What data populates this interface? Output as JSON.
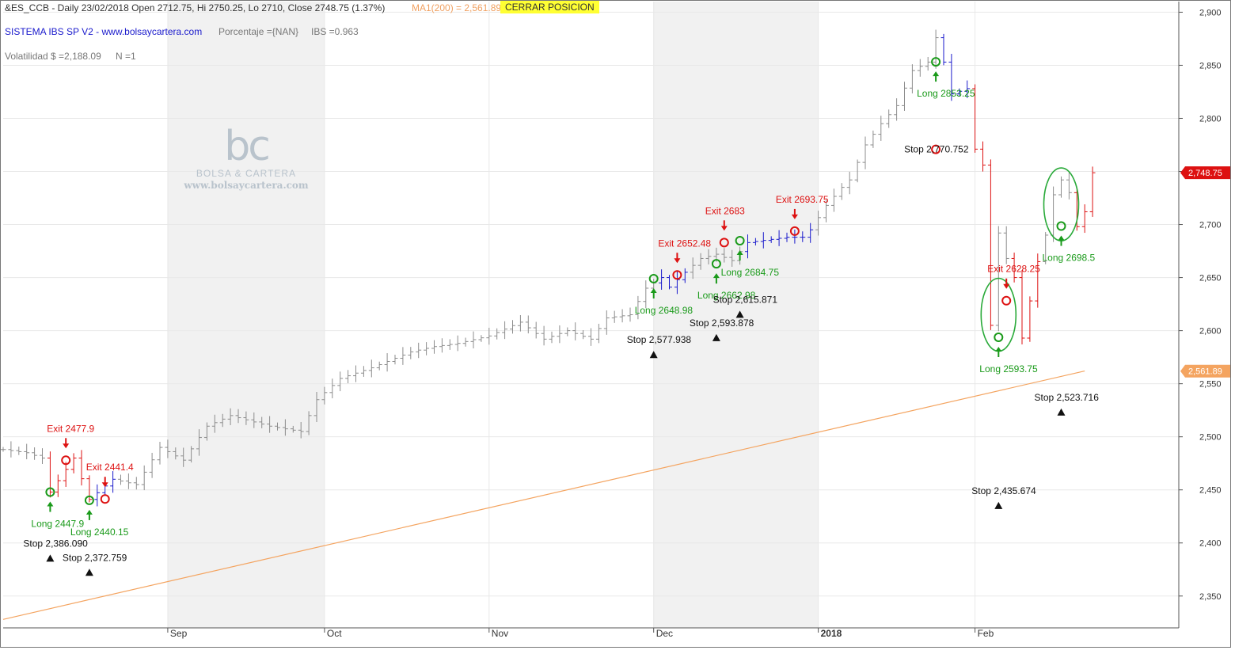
{
  "header": {
    "symbol_line": "&ES_CCB - Daily 23/02/2018  Open 2712.75,  Hi 2750.25,  Lo 2710,  Close 2748.75 (1.37%)",
    "ma_label": "MA1(200) = 2,561.89",
    "position_badge": "CERRAR POSICION",
    "system_name": "SISTEMA IBS SP V2  -  www.bolsaycartera.com",
    "porcentaje": "Porcentaje ={NAN}",
    "ibs": "IBS =0.963",
    "volatilidad": "Volatilidad $ =2,188.09",
    "n_count": "N =1"
  },
  "watermark": {
    "mark": "bc",
    "name": "BOLSA & CARTERA",
    "url": "www.bolsaycartera.com"
  },
  "colors": {
    "bar_gray": "#8c8c8c",
    "bar_red": "#dd1111",
    "bar_blue": "#1a1acc",
    "ma_line": "#f4a460",
    "long_green": "#1a9a1a",
    "exit_red": "#dd1111",
    "stop_black": "#111111",
    "shade": "#f1f1f1",
    "grid": "#e8e8e8"
  },
  "chart_data": {
    "type": "ohlc",
    "title": "&ES_CCB - Daily 23/02/2018",
    "y_axis": {
      "side": "right",
      "min": 2320,
      "max": 2910,
      "ticks": [
        2350,
        2400,
        2450,
        2500,
        2550,
        2600,
        2650,
        2700,
        2750,
        2800,
        2850,
        2900
      ],
      "tick_labels": [
        "2,350",
        "2,400",
        "2,450",
        "2,500",
        "2,550",
        "2,600",
        "2,650",
        "2,700",
        "2,750",
        "2,800",
        "2,850",
        "2,900"
      ]
    },
    "x_axis": {
      "index_range": [
        0,
        150
      ],
      "month_labels": [
        {
          "label": "Sep",
          "index": 21,
          "bold": false
        },
        {
          "label": "Oct",
          "index": 41,
          "bold": false
        },
        {
          "label": "Nov",
          "index": 62,
          "bold": false
        },
        {
          "label": "Dec",
          "index": 83,
          "bold": false
        },
        {
          "label": "2018",
          "index": 104,
          "bold": true
        },
        {
          "label": "Feb",
          "index": 124,
          "bold": false
        }
      ],
      "shaded_months": [
        [
          21,
          41
        ],
        [
          83,
          104
        ]
      ]
    },
    "price_labels": [
      {
        "text": "2,748.75",
        "value": 2748.75,
        "color": "#dd1111"
      },
      {
        "text": "2,561.89",
        "value": 2561.89,
        "color": "#f4a460"
      }
    ],
    "ma_line": {
      "name": "MA1(200)",
      "start": [
        0,
        2328
      ],
      "end": [
        138,
        2562
      ]
    },
    "price_path": [
      [
        0,
        2488
      ],
      [
        3,
        2485
      ],
      [
        5,
        2480
      ],
      [
        6,
        2448
      ],
      [
        9,
        2480
      ],
      [
        11,
        2441
      ],
      [
        14,
        2460
      ],
      [
        17,
        2455
      ],
      [
        20,
        2490
      ],
      [
        23,
        2478
      ],
      [
        26,
        2510
      ],
      [
        29,
        2520
      ],
      [
        34,
        2510
      ],
      [
        38,
        2505
      ],
      [
        40,
        2535
      ],
      [
        43,
        2555
      ],
      [
        47,
        2565
      ],
      [
        52,
        2580
      ],
      [
        55,
        2585
      ],
      [
        58,
        2588
      ],
      [
        62,
        2595
      ],
      [
        66,
        2608
      ],
      [
        69,
        2592
      ],
      [
        72,
        2600
      ],
      [
        75,
        2592
      ],
      [
        77,
        2612
      ],
      [
        80,
        2615
      ],
      [
        82,
        2640
      ],
      [
        84,
        2650
      ],
      [
        85,
        2641
      ],
      [
        87,
        2655
      ],
      [
        89,
        2668
      ],
      [
        91,
        2672
      ],
      [
        93,
        2666
      ],
      [
        95,
        2683
      ],
      [
        97,
        2685
      ],
      [
        100,
        2688
      ],
      [
        102,
        2688
      ],
      [
        103,
        2695
      ],
      [
        105,
        2718
      ],
      [
        107,
        2735
      ],
      [
        108,
        2742
      ],
      [
        110,
        2775
      ],
      [
        112,
        2795
      ],
      [
        114,
        2812
      ],
      [
        116,
        2845
      ],
      [
        118,
        2853
      ],
      [
        119,
        2876
      ],
      [
        120,
        2853
      ],
      [
        121,
        2823
      ],
      [
        123,
        2828
      ],
      [
        124,
        2771
      ],
      [
        125,
        2756
      ],
      [
        126,
        2605
      ],
      [
        127,
        2692
      ],
      [
        128,
        2668
      ],
      [
        129,
        2650
      ],
      [
        130,
        2593
      ],
      [
        131,
        2628
      ],
      [
        132,
        2665
      ],
      [
        133,
        2690
      ],
      [
        134,
        2728
      ],
      [
        135,
        2742
      ],
      [
        136,
        2730
      ],
      [
        137,
        2698
      ],
      [
        138,
        2712
      ],
      [
        139,
        2748.75
      ]
    ],
    "red_segments": [
      [
        6,
        11
      ],
      [
        124,
        126
      ],
      [
        129,
        132
      ],
      [
        137,
        139
      ]
    ],
    "blue_segments": [
      [
        11,
        14
      ],
      [
        84,
        87
      ],
      [
        95,
        103
      ],
      [
        120,
        124
      ]
    ],
    "long_signals": [
      {
        "text": "Long 2447.9",
        "index": 6,
        "value": 2447.9
      },
      {
        "text": "Long 2440.15",
        "index": 11,
        "value": 2440.15
      },
      {
        "text": "Long 2648.98",
        "index": 83,
        "value": 2648.98
      },
      {
        "text": "Long 2662.98",
        "index": 91,
        "value": 2662.98
      },
      {
        "text": "Long 2684.75",
        "index": 94,
        "value": 2684.75
      },
      {
        "text": "Long 2853.25",
        "index": 119,
        "value": 2853.25
      },
      {
        "text": "Long 2593.75",
        "index": 127,
        "value": 2593.75
      },
      {
        "text": "Long 2698.5",
        "index": 135,
        "value": 2698.5
      }
    ],
    "exit_signals": [
      {
        "text": "Exit 2477.9",
        "index": 8,
        "value": 2477.9
      },
      {
        "text": "Exit 2441.4",
        "index": 13,
        "value": 2441.4
      },
      {
        "text": "Exit 2652.48",
        "index": 86,
        "value": 2652.48
      },
      {
        "text": "Exit 2683",
        "index": 92,
        "value": 2683
      },
      {
        "text": "Exit 2693.75",
        "index": 101,
        "value": 2693.75
      },
      {
        "text": "Stop 2,770.752",
        "index": 119,
        "value": 2770.752
      },
      {
        "text": "Exit 2628.25",
        "index": 128,
        "value": 2628.25
      }
    ],
    "stop_levels": [
      {
        "text": "Stop 2,386.090",
        "index": 6,
        "value": 2386.09
      },
      {
        "text": "Stop 2,372.759",
        "index": 11,
        "value": 2372.759
      },
      {
        "text": "Stop 2,577.938",
        "index": 83,
        "value": 2577.938
      },
      {
        "text": "Stop 2,593.878",
        "index": 91,
        "value": 2593.878
      },
      {
        "text": "Stop 2,615.871",
        "index": 94,
        "value": 2615.871
      },
      {
        "text": "Stop 2,435.674",
        "index": 127,
        "value": 2435.674
      },
      {
        "text": "Stop 2,523.716",
        "index": 135,
        "value": 2523.716
      }
    ],
    "highlight_ellipses": [
      {
        "center_index": 127,
        "center_value": 2615
      },
      {
        "center_index": 135,
        "center_value": 2719
      }
    ]
  }
}
